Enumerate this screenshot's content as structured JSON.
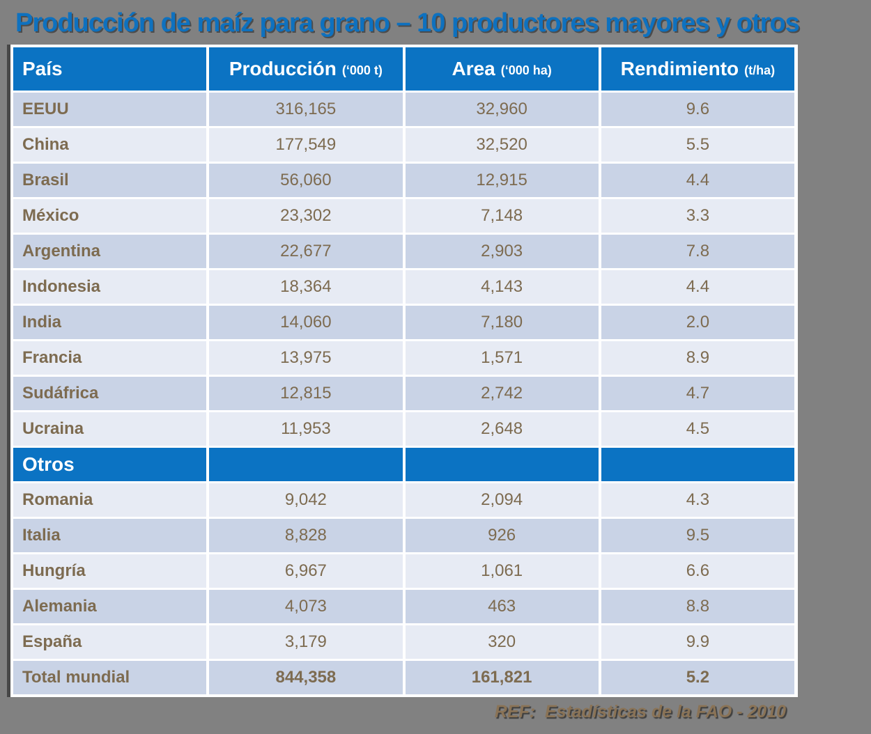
{
  "chart_data": {
    "type": "table",
    "title": "Producción de maíz para grano – 10 productores mayores y otros",
    "columns": [
      {
        "label": "País",
        "unit": ""
      },
      {
        "label": "Producción",
        "unit": "(‘000 t)"
      },
      {
        "label": "Area",
        "unit": "(‘000 ha)"
      },
      {
        "label": "Rendimiento",
        "unit": "(t/ha)"
      }
    ],
    "rows": [
      {
        "type": "data",
        "country": "EEUU",
        "produccion": "316,165",
        "area": "32,960",
        "rendimiento": "9.6"
      },
      {
        "type": "data",
        "country": "China",
        "produccion": "177,549",
        "area": "32,520",
        "rendimiento": "5.5"
      },
      {
        "type": "data",
        "country": "Brasil",
        "produccion": "56,060",
        "area": "12,915",
        "rendimiento": "4.4"
      },
      {
        "type": "data",
        "country": "México",
        "produccion": "23,302",
        "area": "7,148",
        "rendimiento": "3.3"
      },
      {
        "type": "data",
        "country": "Argentina",
        "produccion": "22,677",
        "area": "2,903",
        "rendimiento": "7.8"
      },
      {
        "type": "data",
        "country": "Indonesia",
        "produccion": "18,364",
        "area": "4,143",
        "rendimiento": "4.4"
      },
      {
        "type": "data",
        "country": "India",
        "produccion": "14,060",
        "area": "7,180",
        "rendimiento": "2.0"
      },
      {
        "type": "data",
        "country": "Francia",
        "produccion": "13,975",
        "area": "1,571",
        "rendimiento": "8.9"
      },
      {
        "type": "data",
        "country": "Sudáfrica",
        "produccion": "12,815",
        "area": "2,742",
        "rendimiento": "4.7"
      },
      {
        "type": "data",
        "country": "Ucraina",
        "produccion": "11,953",
        "area": "2,648",
        "rendimiento": "4.5"
      },
      {
        "type": "section",
        "country": "Otros",
        "produccion": "",
        "area": "",
        "rendimiento": ""
      },
      {
        "type": "data",
        "country": "Romania",
        "produccion": "9,042",
        "area": "2,094",
        "rendimiento": "4.3"
      },
      {
        "type": "data",
        "country": "Italia",
        "produccion": "8,828",
        "area": "926",
        "rendimiento": "9.5"
      },
      {
        "type": "data",
        "country": "Hungría",
        "produccion": "6,967",
        "area": "1,061",
        "rendimiento": "6.6"
      },
      {
        "type": "data",
        "country": "Alemania",
        "produccion": "4,073",
        "area": "463",
        "rendimiento": "8.8"
      },
      {
        "type": "data",
        "country": "España",
        "produccion": "3,179",
        "area": "320",
        "rendimiento": "9.9"
      },
      {
        "type": "total",
        "country": "Total mundial",
        "produccion": "844,358",
        "area": "161,821",
        "rendimiento": "5.2"
      }
    ],
    "source_note": "REF:  Estadísticas de la FAO - 2010",
    "colors": {
      "background": "#818181",
      "header_blue": "#0b73c3",
      "row_dark": "#c9d3e6",
      "row_light": "#e7ebf4",
      "text_brown": "#7d6b50",
      "title_blue": "#0e71bf",
      "ref_gold": "#8a7356"
    }
  }
}
